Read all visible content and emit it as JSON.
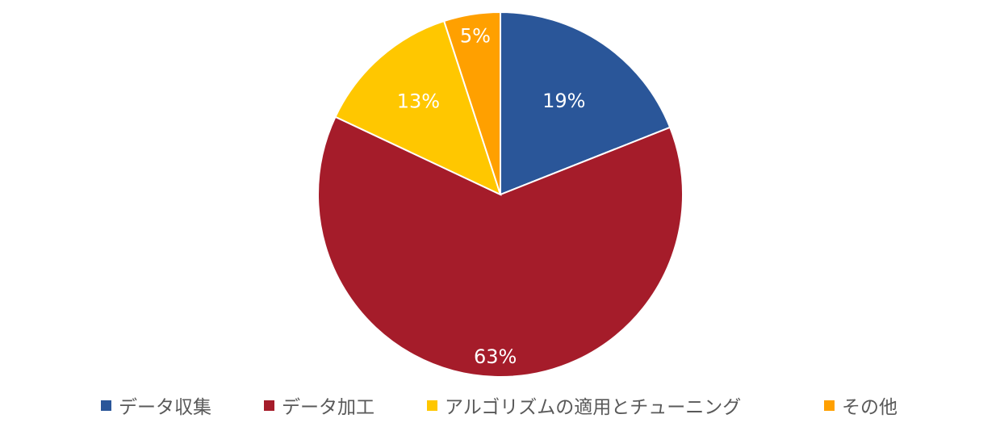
{
  "chart_data": {
    "type": "pie",
    "title": "",
    "categories": [
      "データ収集",
      "データ加工",
      "アルゴリズムの適用とチューニング",
      "その他"
    ],
    "values": [
      19,
      63,
      13,
      5
    ],
    "labels": [
      "19%",
      "63%",
      "13%",
      "5%"
    ],
    "colors": [
      "#2A5699",
      "#A51C2A",
      "#FFC700",
      "#FFA000"
    ],
    "legend_position": "bottom"
  }
}
